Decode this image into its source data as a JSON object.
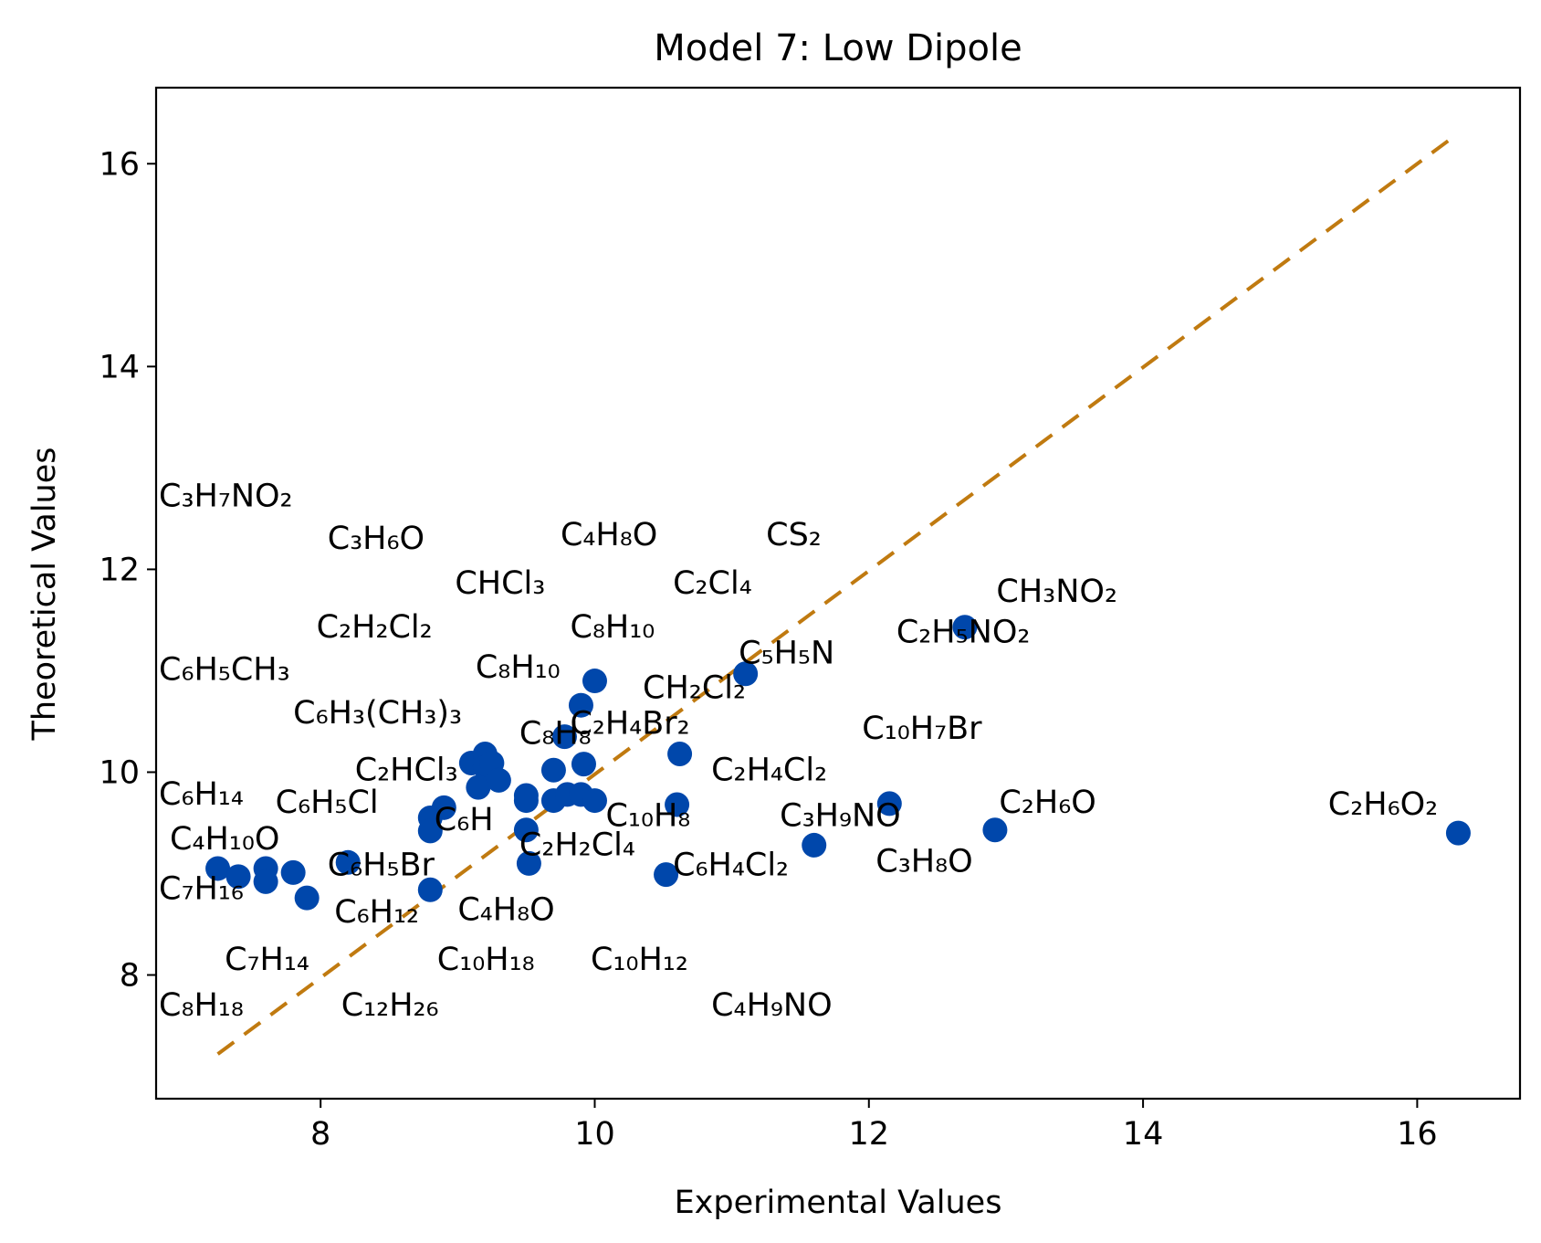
{
  "chart_data": {
    "type": "scatter",
    "title": "Model 7: Low Dipole",
    "xlabel": "Experimental Values",
    "ylabel": "Theoretical Values",
    "xlim": [
      6.8,
      16.75
    ],
    "ylim": [
      6.78,
      16.75
    ],
    "xticks": [
      "8",
      "10",
      "12",
      "14",
      "16"
    ],
    "yticks": [
      "8",
      "10",
      "12",
      "14",
      "16"
    ],
    "grid": false,
    "colors": {
      "points": "#0047ab",
      "reference_line": "#c07a10"
    },
    "reference_line": {
      "style": "dashed",
      "from": [
        7.25,
        7.22
      ],
      "to": [
        16.25,
        16.25
      ]
    },
    "points": [
      [
        7.25,
        9.05
      ],
      [
        7.4,
        8.97
      ],
      [
        7.6,
        9.05
      ],
      [
        7.6,
        8.92
      ],
      [
        7.8,
        9.01
      ],
      [
        7.9,
        8.76
      ],
      [
        8.2,
        9.11
      ],
      [
        8.8,
        9.55
      ],
      [
        8.8,
        9.42
      ],
      [
        8.8,
        8.84
      ],
      [
        8.9,
        9.65
      ],
      [
        9.1,
        10.09
      ],
      [
        9.2,
        10.18
      ],
      [
        9.2,
        10.05
      ],
      [
        9.25,
        10.09
      ],
      [
        9.15,
        9.85
      ],
      [
        9.3,
        9.92
      ],
      [
        9.5,
        9.77
      ],
      [
        9.5,
        9.72
      ],
      [
        9.5,
        9.43
      ],
      [
        9.52,
        9.1
      ],
      [
        9.7,
        10.02
      ],
      [
        9.7,
        9.72
      ],
      [
        9.78,
        10.35
      ],
      [
        9.8,
        9.78
      ],
      [
        9.9,
        9.78
      ],
      [
        9.9,
        10.66
      ],
      [
        9.92,
        10.08
      ],
      [
        10.0,
        10.9
      ],
      [
        10.0,
        9.72
      ],
      [
        10.52,
        8.99
      ],
      [
        10.6,
        9.68
      ],
      [
        10.62,
        10.18
      ],
      [
        11.1,
        10.97
      ],
      [
        11.6,
        9.28
      ],
      [
        12.15,
        9.69
      ],
      [
        12.7,
        11.43
      ],
      [
        12.92,
        9.43
      ],
      [
        16.3,
        9.4
      ]
    ],
    "labels": [
      {
        "text": "C₃H₇NO₂",
        "x": 6.82,
        "y": 12.62
      },
      {
        "text": "C₃H₆O",
        "x": 8.05,
        "y": 12.2
      },
      {
        "text": "C₄H₈O",
        "x": 9.75,
        "y": 12.24
      },
      {
        "text": "CS₂",
        "x": 11.25,
        "y": 12.24
      },
      {
        "text": "CHCl₃",
        "x": 8.98,
        "y": 11.76
      },
      {
        "text": "C₂Cl₄",
        "x": 10.57,
        "y": 11.76
      },
      {
        "text": "CH₃NO₂",
        "x": 12.93,
        "y": 11.68
      },
      {
        "text": "C₂H₂Cl₂",
        "x": 7.97,
        "y": 11.33
      },
      {
        "text": "C₈H₁₀",
        "x": 9.82,
        "y": 11.33
      },
      {
        "text": "C₂H₅NO₂",
        "x": 12.2,
        "y": 11.28
      },
      {
        "text": "C₅H₅N",
        "x": 11.05,
        "y": 11.07
      },
      {
        "text": "C₆H₅CH₃",
        "x": 6.82,
        "y": 10.91
      },
      {
        "text": "C₈H₁₀",
        "x": 9.13,
        "y": 10.93
      },
      {
        "text": "CH₂Cl₂",
        "x": 10.35,
        "y": 10.73
      },
      {
        "text": "C₆H₃(CH₃)₃",
        "x": 7.8,
        "y": 10.48
      },
      {
        "text": "C₂H₄Br₂",
        "x": 9.82,
        "y": 10.38
      },
      {
        "text": "C₁₀H₇Br",
        "x": 11.95,
        "y": 10.33
      },
      {
        "text": "C₈H₈",
        "x": 9.45,
        "y": 10.28
      },
      {
        "text": "C₂HCl₃",
        "x": 8.25,
        "y": 9.92
      },
      {
        "text": "C₂H₄Cl₂",
        "x": 10.85,
        "y": 9.92
      },
      {
        "text": "C₆H₁₄",
        "x": 6.82,
        "y": 9.68
      },
      {
        "text": "C₆H₅Cl",
        "x": 7.67,
        "y": 9.6
      },
      {
        "text": "C₂H₆O",
        "x": 12.95,
        "y": 9.6
      },
      {
        "text": "C₂H₆O₂",
        "x": 15.35,
        "y": 9.58
      },
      {
        "text": "C₁₀H₈",
        "x": 10.08,
        "y": 9.47
      },
      {
        "text": "C₃H₉NO",
        "x": 11.35,
        "y": 9.47
      },
      {
        "text": "C₆H",
        "x": 8.83,
        "y": 9.43
      },
      {
        "text": "C₄H₁₀O",
        "x": 6.9,
        "y": 9.24
      },
      {
        "text": "C₂H₂Cl₄",
        "x": 9.45,
        "y": 9.18
      },
      {
        "text": "C₆H₅Br",
        "x": 8.05,
        "y": 8.98
      },
      {
        "text": "C₆H₄Cl₂",
        "x": 10.57,
        "y": 8.98
      },
      {
        "text": "C₃H₈O",
        "x": 12.05,
        "y": 9.02
      },
      {
        "text": "C₇H₁₆",
        "x": 6.82,
        "y": 8.75
      },
      {
        "text": "C₆H₁₂",
        "x": 8.1,
        "y": 8.52
      },
      {
        "text": "C₄H₈O",
        "x": 9.0,
        "y": 8.54
      },
      {
        "text": "C₇H₁₄",
        "x": 7.3,
        "y": 8.05
      },
      {
        "text": "C₁₀H₁₈",
        "x": 8.85,
        "y": 8.05
      },
      {
        "text": "C₁₀H₁₂",
        "x": 9.97,
        "y": 8.05
      },
      {
        "text": "C₈H₁₈",
        "x": 6.82,
        "y": 7.6
      },
      {
        "text": "C₁₂H₂₆",
        "x": 8.15,
        "y": 7.6
      },
      {
        "text": "C₄H₉NO",
        "x": 10.85,
        "y": 7.6
      }
    ]
  }
}
